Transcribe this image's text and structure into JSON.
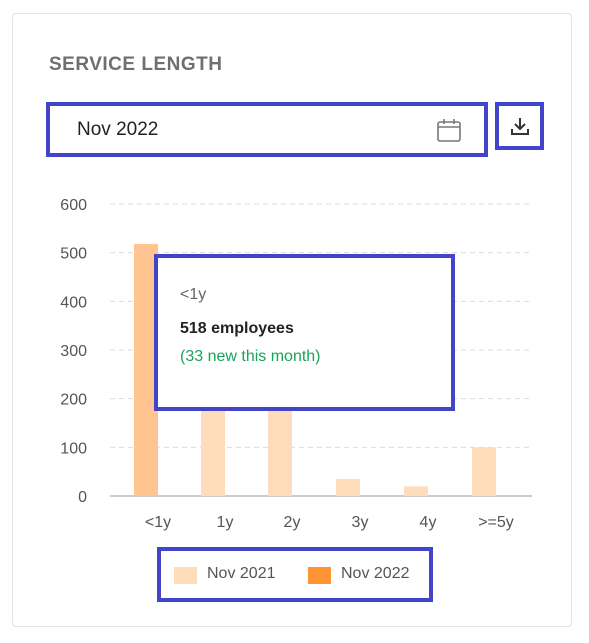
{
  "widget": {
    "title": "SERVICE LENGTH",
    "date_value": "Nov 2022",
    "calendar_icon": "calendar-icon",
    "download_icon": "download-icon"
  },
  "tooltip": {
    "category": "<1y",
    "employees": "518 employees",
    "new_this_month": "(33 new this month)"
  },
  "legend": {
    "items": [
      {
        "label": "Nov 2021",
        "color": "#ffdcbb"
      },
      {
        "label": "Nov 2022",
        "color": "#ff9433"
      }
    ]
  },
  "chart_data": {
    "type": "bar",
    "categories": [
      "<1y",
      "1y",
      "2y",
      "3y",
      "4y",
      ">=5y"
    ],
    "series": [
      {
        "name": "Nov 2021",
        "values": [
          518,
          180,
          180,
          35,
          20,
          100
        ],
        "color": "#ffdcbb"
      },
      {
        "name": "Nov 2022",
        "values": [
          null,
          null,
          null,
          null,
          null,
          null
        ],
        "color": "#ff9433"
      }
    ],
    "highlight": {
      "category": "<1y",
      "color": "#ffc48f"
    },
    "yticks": [
      0,
      100,
      200,
      300,
      400,
      500,
      600
    ],
    "ylim": [
      0,
      600
    ],
    "grid": true,
    "legend_position": "bottom"
  }
}
